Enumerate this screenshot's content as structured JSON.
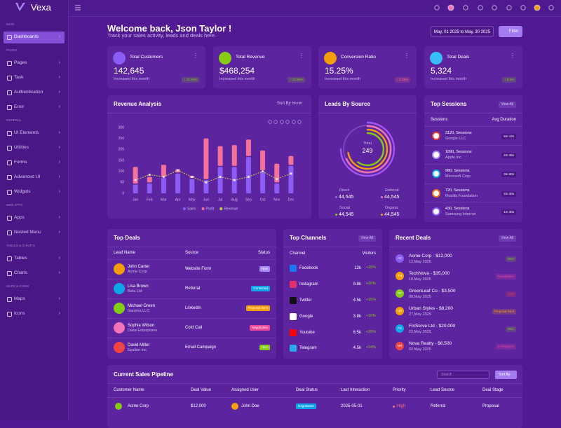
{
  "brand": "Vexa",
  "sidebar": [
    {
      "title": "MAIN",
      "items": [
        "Dashboards"
      ]
    },
    {
      "title": "PAGES",
      "items": [
        "Pages",
        "Task",
        "Authentication",
        "Error"
      ]
    },
    {
      "title": "GENERAL",
      "items": [
        "UI Elements",
        "Utilities",
        "Forms",
        "Advanced UI",
        "Widgets"
      ]
    },
    {
      "title": "WEB APPS",
      "items": [
        "Apps",
        "Nested Menu"
      ]
    },
    {
      "title": "TABLES & CHARTS",
      "items": [
        "Tables",
        "Charts"
      ]
    },
    {
      "title": "MAPS & ICONS",
      "items": [
        "Maps",
        "Icons"
      ]
    }
  ],
  "header": {
    "title": "Welcome back, Json Taylor !",
    "subtitle": "Track your sales activity, leads and deals here.",
    "date_range": "May, 01 2025 to May, 30 2025",
    "filter": "Filter"
  },
  "stats": [
    {
      "label": "Total Customers",
      "value": "142,645",
      "note": "Increased this month",
      "change": "↑ 10.45%",
      "color": "#8b5cf6",
      "change_color": "#84cc16"
    },
    {
      "label": "Total Revenue",
      "value": "$468,254",
      "note": "Increased this month",
      "change": "↑ 12.85%",
      "color": "#84cc16",
      "change_color": "#84cc16"
    },
    {
      "label": "Conversion Ratio",
      "value": "15.25%",
      "note": "Increased this month",
      "change": "↓ 0.35%",
      "color": "#f59e0b",
      "change_color": "#f87171"
    },
    {
      "label": "Total Deals",
      "value": "5,324",
      "note": "Increased this month",
      "change": "↑ 8.5%",
      "color": "#38bdf8",
      "change_color": "#84cc16"
    }
  ],
  "chart_data": {
    "type": "bar",
    "title": "Revenue Analysis",
    "sort_label": "Sort By :",
    "sort_value": "Month",
    "stacked": true,
    "grid": false,
    "categories": [
      "Jan",
      "Feb",
      "Mar",
      "Apr",
      "May",
      "Jun",
      "Jul",
      "Aug",
      "Sep",
      "Oct",
      "Nov",
      "Dec"
    ],
    "series": [
      {
        "name": "Sales",
        "color": "#8b5cf6",
        "values": [
          40,
          45,
          70,
          90,
          65,
          60,
          120,
          120,
          165,
          100,
          45,
          125
        ]
      },
      {
        "name": "Profit",
        "color": "#f4729a",
        "values": [
          80,
          30,
          60,
          20,
          15,
          190,
          95,
          100,
          80,
          95,
          90,
          45
        ]
      },
      {
        "name": "Revenue",
        "type": "line",
        "color": "#c5d944",
        "values": [
          60,
          85,
          75,
          105,
          75,
          50,
          75,
          60,
          75,
          100,
          65,
          90
        ]
      }
    ],
    "ylim": [
      0,
      300
    ],
    "yticks": [
      0,
      50,
      100,
      150,
      200,
      250,
      300
    ],
    "legend": "bottom"
  },
  "leads": {
    "title": "Leads By Source",
    "total_label": "Total",
    "total": "249",
    "sources": [
      {
        "name": "Direct",
        "value": "44,545",
        "color": "#a855f7"
      },
      {
        "name": "Referral",
        "value": "44,545",
        "color": "#f472b6"
      },
      {
        "name": "Social",
        "value": "44,545",
        "color": "#84cc16"
      },
      {
        "name": "Organic",
        "value": "44,545",
        "color": "#f59e0b"
      }
    ]
  },
  "sessions": {
    "title": "Top Sessions",
    "view_all": "View All",
    "columns": [
      "Sessions",
      "Avg Duration"
    ],
    "rows": [
      {
        "sessions": "3120, Sessions",
        "name": "Google LLC",
        "duration": "5m 12s"
      },
      {
        "sessions": "1890, Sessions",
        "name": "Apple Inc",
        "duration": "4m 45s"
      },
      {
        "sessions": "980, Sessions",
        "name": "Microsoft Corp",
        "duration": "3m 50s"
      },
      {
        "sessions": "720, Sessions",
        "name": "Mozilla Foundation",
        "duration": "2m 40s"
      },
      {
        "sessions": "430, Sessions",
        "name": "Samsung Internet",
        "duration": "1m 30s"
      }
    ]
  },
  "top_deals": {
    "title": "Top Deals",
    "columns": [
      "Lead Name",
      "Source",
      "Status"
    ],
    "rows": [
      {
        "name": "John Carter",
        "company": "Acme Corp",
        "source": "Website Form",
        "status": "New",
        "color": "#a78bfa"
      },
      {
        "name": "Lisa Brown",
        "company": "Beta Ltd",
        "source": "Referral",
        "status": "Contacted",
        "color": "#0ea5e9"
      },
      {
        "name": "Michael Green",
        "company": "Gamma LLC",
        "source": "LinkedIn",
        "status": "Proposal Sent",
        "color": "#f59e0b"
      },
      {
        "name": "Sophia Wilson",
        "company": "Delta Enterprises",
        "source": "Cold Call",
        "status": "Negotiation",
        "color": "#ec4899"
      },
      {
        "name": "David Miller",
        "company": "Epsilon Inc.",
        "source": "Email Campaign",
        "status": "Won",
        "color": "#84cc16"
      }
    ]
  },
  "channels": {
    "title": "Top Channels",
    "view_all": "View All",
    "columns": [
      "Channel",
      "Visitors"
    ],
    "rows": [
      {
        "name": "Facebook",
        "visitors": "12k",
        "change": "+15%",
        "color": "#1877f2"
      },
      {
        "name": "Instagram",
        "visitors": "9.8k",
        "change": "+20%",
        "color": "#e1306c"
      },
      {
        "name": "Twitter",
        "visitors": "4.5k",
        "change": "+15%",
        "color": "#111111"
      },
      {
        "name": "Google",
        "visitors": "3.8k",
        "change": "+10%",
        "color": "#ffffff"
      },
      {
        "name": "Youtube",
        "visitors": "6.5k",
        "change": "+25%",
        "color": "#ff0000"
      },
      {
        "name": "Telegram",
        "visitors": "4.5k",
        "change": "+14%",
        "color": "#29a9eb"
      }
    ]
  },
  "recent_deals": {
    "title": "Recent Deals",
    "view_all": "View All",
    "rows": [
      {
        "initials": "AC",
        "title": "Acme Corp - $12,000",
        "date": "12,May 2025",
        "status": "Won",
        "color": "#8b5cf6",
        "status_color": "#84cc16"
      },
      {
        "initials": "TN",
        "title": "TechNova - $35,000",
        "date": "10,May 2025",
        "status": "Negotiation",
        "color": "#f59e0b",
        "status_color": "#ec4899"
      },
      {
        "initials": "GC",
        "title": "GreenLeaf Co - $3,500",
        "date": "08,May 2025",
        "status": "Lost",
        "color": "#84cc16",
        "status_color": "#ef4444"
      },
      {
        "initials": "US",
        "title": "Urban Styles - $8,200",
        "date": "27,May 2025",
        "status": "Proposal Sent",
        "color": "#f59e0b",
        "status_color": "#f59e0b"
      },
      {
        "initials": "FS",
        "title": "FinServe Ltd - $20,000",
        "date": "22,May 2025",
        "status": "Won",
        "color": "#0ea5e9",
        "status_color": "#84cc16"
      },
      {
        "initials": "NR",
        "title": "Nova Realty - $6,500",
        "date": "02,May 2025",
        "status": "In Progress",
        "color": "#ef4444",
        "status_color": "#ec4899"
      }
    ]
  },
  "pipeline": {
    "title": "Current Sales Pipeline",
    "search": "Search",
    "sort": "Sort By",
    "columns": [
      "Customer Name",
      "Deal Value",
      "Assigned User",
      "Deal Status",
      "Last Interaction",
      "Priority",
      "Lead Source",
      "Deal Stage"
    ],
    "rows": [
      [
        "Acme Corp",
        "$12,000",
        "John Doe",
        "Negotiation",
        "2025-05-01",
        "High",
        "Referral",
        "Proposal"
      ]
    ]
  }
}
